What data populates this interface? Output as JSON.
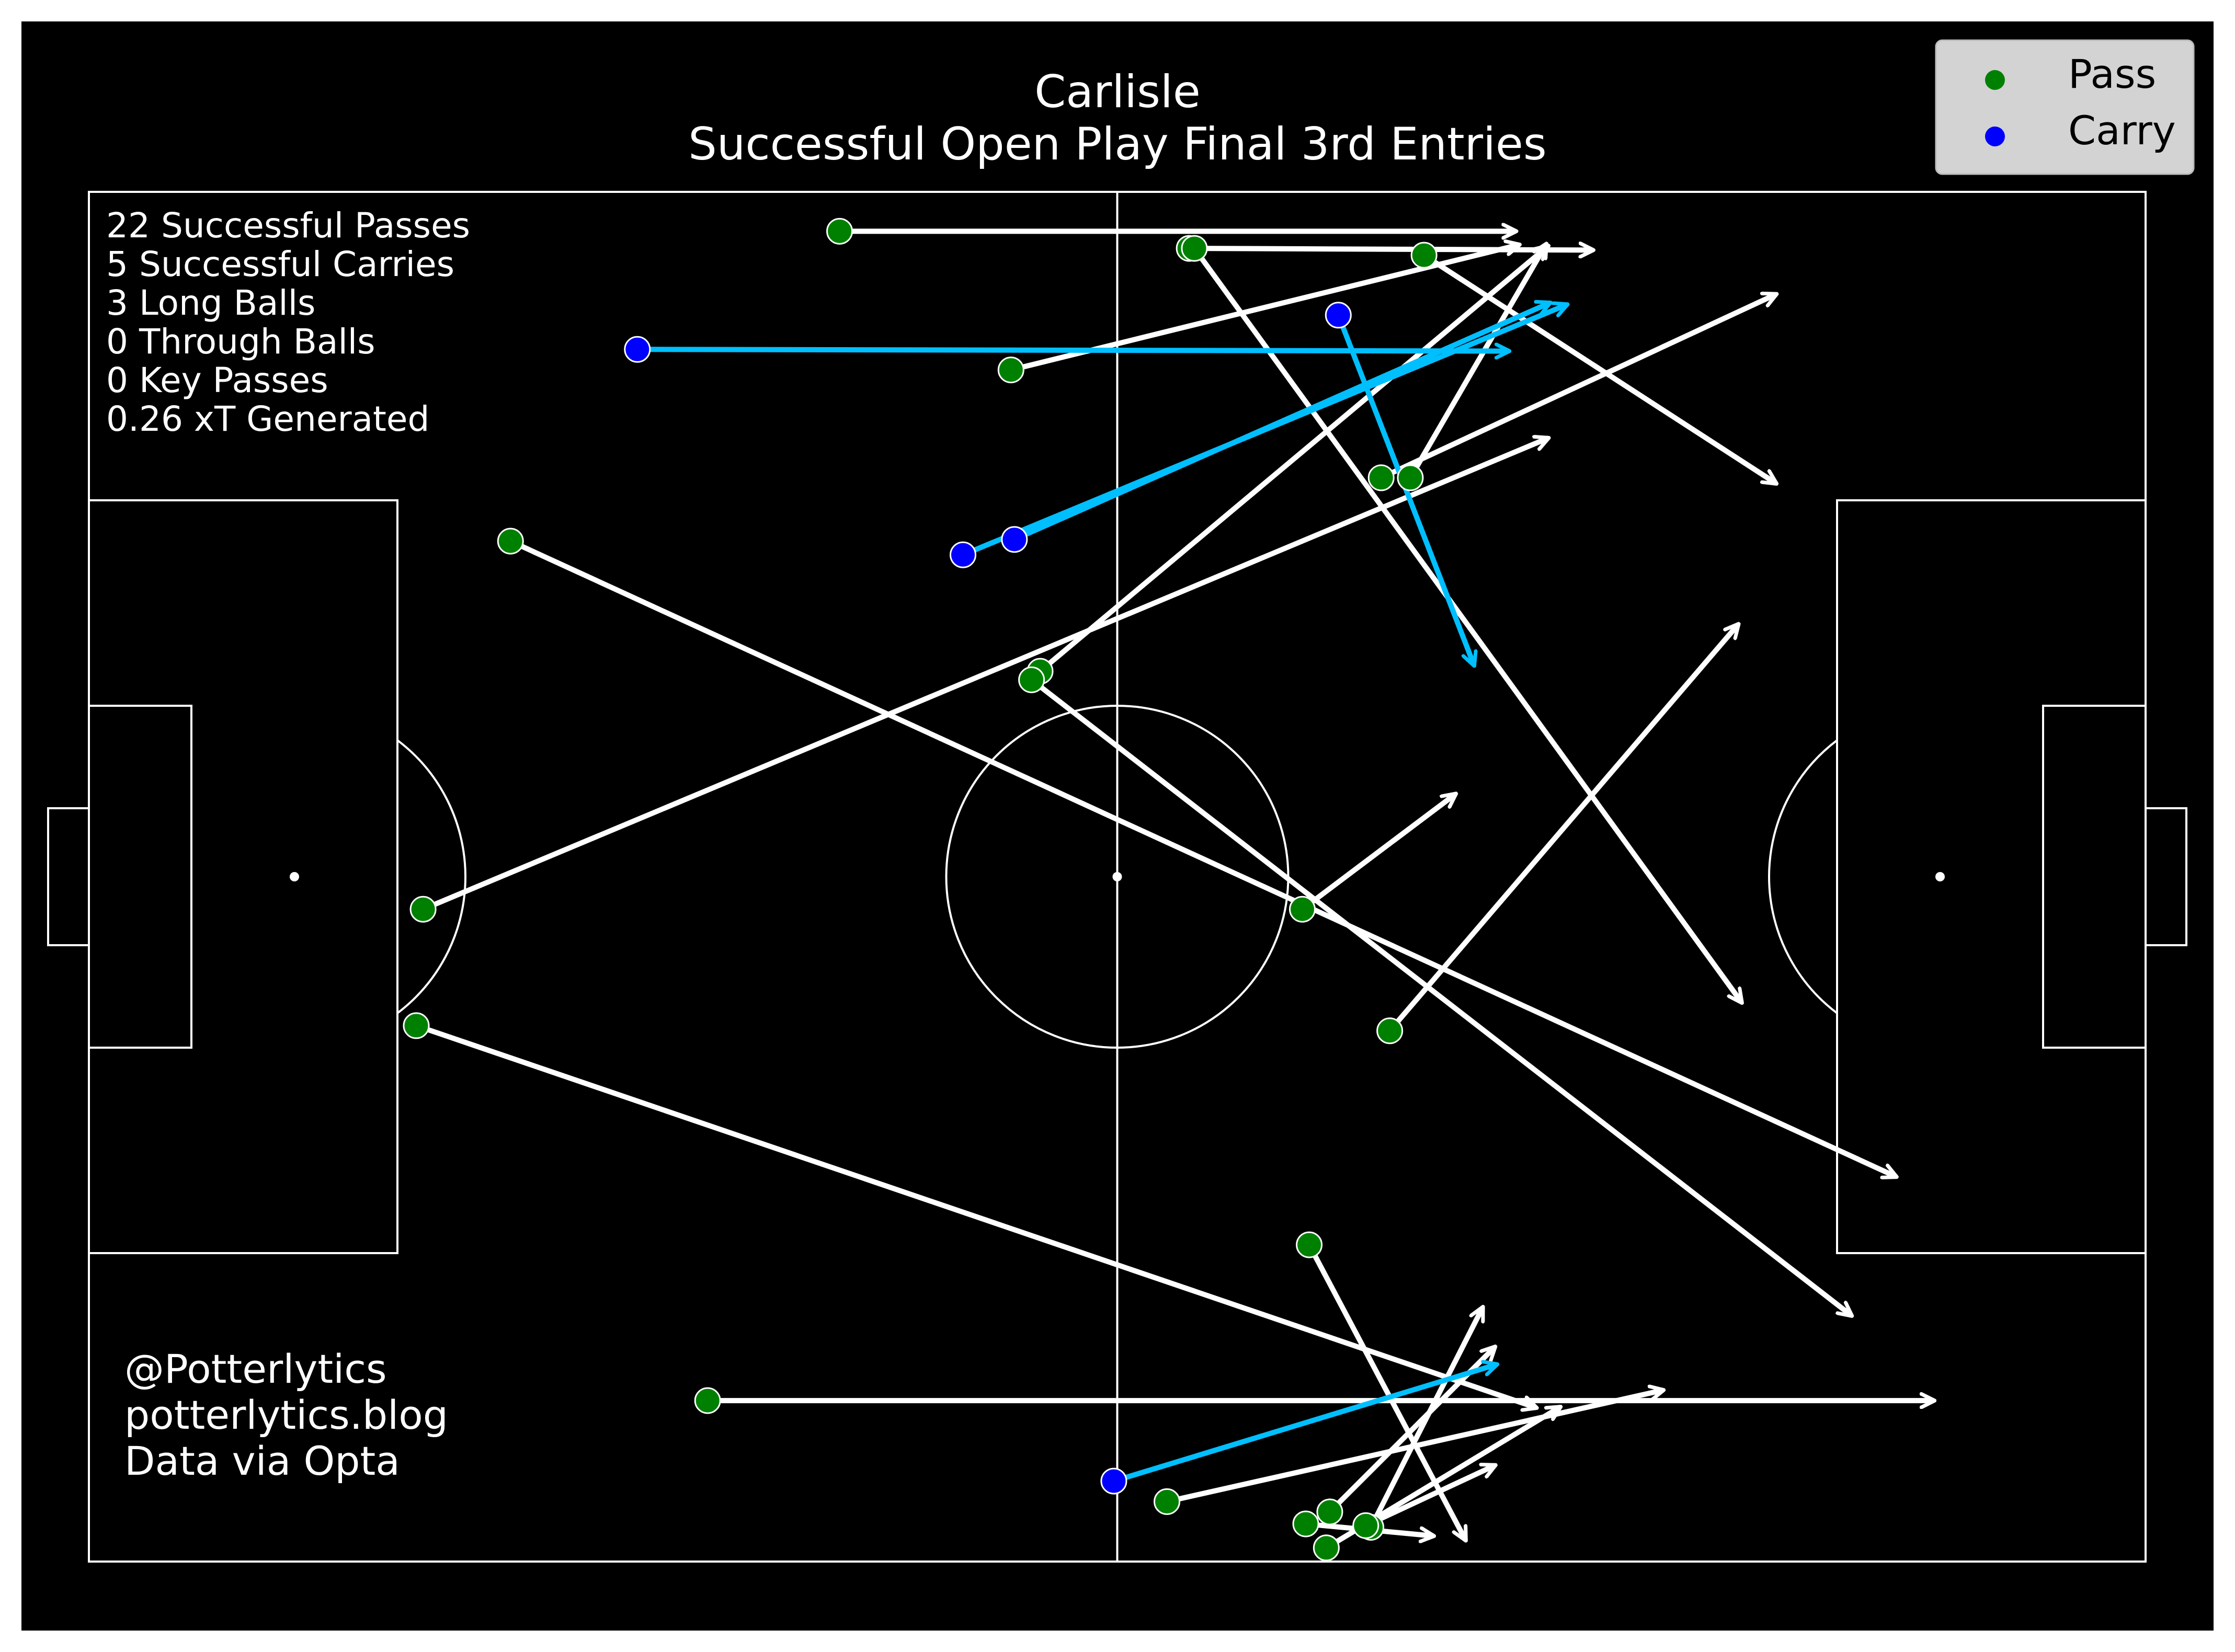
{
  "title": {
    "line1": "Carlisle",
    "line2": "Successful Open Play Final 3rd Entries"
  },
  "stats": [
    "22 Successful Passes",
    "5 Successful Carries",
    "3 Long Balls",
    "0 Through Balls",
    "0 Key Passes",
    "0.26 xT Generated"
  ],
  "credits": [
    "@Potterlytics",
    "potterlytics.blog",
    "Data via Opta"
  ],
  "legend": {
    "items": [
      {
        "label": "Pass",
        "color": "#008000"
      },
      {
        "label": "Carry",
        "color": "#0000ff"
      }
    ]
  },
  "colors": {
    "background": "#000000",
    "lines": "#ffffff",
    "pass_arrow": "#ffffff",
    "carry_arrow": "#00bfff",
    "pass_marker": "#008000",
    "carry_marker": "#0000ff"
  },
  "chart_data": {
    "type": "scatter",
    "pitch": {
      "length": 120,
      "width": 80,
      "grid": false
    },
    "legend_position": "top-right",
    "series": [
      {
        "name": "Pass",
        "segments": [
          {
            "start": [
              43.8,
              2.3
            ],
            "end": [
              83.2,
              2.3
            ]
          },
          {
            "start": [
              64.2,
              3.3
            ],
            "end": [
              87.7,
              3.4
            ]
          },
          {
            "start": [
              77.9,
              3.7
            ],
            "end": [
              98.4,
              17.0
            ]
          },
          {
            "start": [
              53.8,
              10.4
            ],
            "end": [
              83.4,
              3.1
            ]
          },
          {
            "start": [
              24.6,
              20.4
            ],
            "end": [
              105.4,
              57.5
            ]
          },
          {
            "start": [
              77.1,
              16.7
            ],
            "end": [
              85.0,
              3.1
            ]
          },
          {
            "start": [
              75.4,
              16.7
            ],
            "end": [
              98.4,
              6.0
            ]
          },
          {
            "start": [
              55.5,
              28.0
            ],
            "end": [
              85.1,
              3.2
            ]
          },
          {
            "start": [
              55.0,
              28.5
            ],
            "end": [
              102.8,
              65.6
            ]
          },
          {
            "start": [
              19.5,
              41.9
            ],
            "end": [
              85.1,
              14.4
            ]
          },
          {
            "start": [
              70.8,
              41.9
            ],
            "end": [
              79.7,
              35.2
            ]
          },
          {
            "start": [
              19.1,
              48.7
            ],
            "end": [
              84.4,
              71.0
            ]
          },
          {
            "start": [
              75.9,
              49.0
            ],
            "end": [
              96.2,
              25.3
            ]
          },
          {
            "start": [
              64.5,
              3.3
            ],
            "end": [
              96.4,
              47.3
            ]
          },
          {
            "start": [
              71.2,
              61.5
            ],
            "end": [
              80.3,
              78.7
            ]
          },
          {
            "start": [
              36.1,
              70.6
            ],
            "end": [
              107.6,
              70.6
            ]
          },
          {
            "start": [
              62.9,
              76.5
            ],
            "end": [
              91.8,
              70.0
            ]
          },
          {
            "start": [
              72.4,
              77.1
            ],
            "end": [
              82.0,
              67.5
            ]
          },
          {
            "start": [
              71.0,
              77.8
            ],
            "end": [
              78.4,
              78.5
            ]
          },
          {
            "start": [
              72.2,
              79.2
            ],
            "end": [
              85.8,
              71.0
            ]
          },
          {
            "start": [
              74.8,
              78.0
            ],
            "end": [
              81.3,
              65.2
            ]
          },
          {
            "start": [
              74.5,
              77.9
            ],
            "end": [
              82.0,
              74.4
            ]
          }
        ]
      },
      {
        "name": "Carry",
        "segments": [
          {
            "start": [
              32.0,
              9.2
            ],
            "end": [
              82.8,
              9.3
            ]
          },
          {
            "start": [
              51.0,
              21.2
            ],
            "end": [
              86.2,
              6.6
            ]
          },
          {
            "start": [
              54.0,
              20.3
            ],
            "end": [
              85.2,
              6.5
            ]
          },
          {
            "start": [
              72.9,
              7.2
            ],
            "end": [
              80.8,
              27.6
            ]
          },
          {
            "start": [
              59.8,
              75.3
            ],
            "end": [
              82.1,
              68.5
            ]
          }
        ]
      }
    ]
  }
}
